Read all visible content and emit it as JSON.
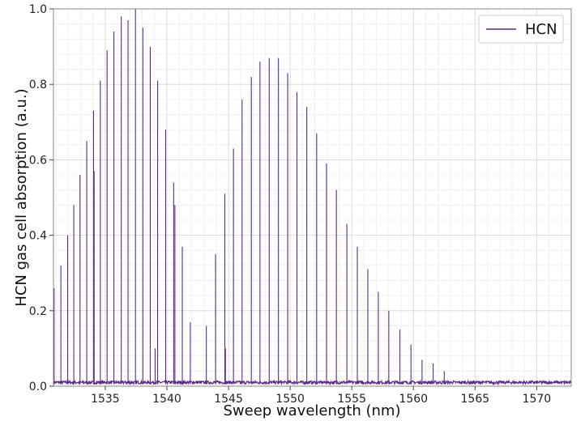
{
  "chart_data": {
    "type": "line",
    "xlabel": "Sweep wavelength (nm)",
    "ylabel": "HCN gas cell absorption (a.u.)",
    "xlim": [
      1530.8,
      1572.8
    ],
    "ylim": [
      0.0,
      1.0
    ],
    "x_ticks": [
      "1535",
      "1540",
      "1545",
      "1550",
      "1555",
      "1560",
      "1565",
      "1570"
    ],
    "y_ticks": [
      "0.0",
      "0.2",
      "0.4",
      "0.6",
      "0.8",
      "1.0"
    ],
    "x_tick_values": [
      1535,
      1540,
      1545,
      1550,
      1555,
      1560,
      1565,
      1570
    ],
    "y_tick_values": [
      0.0,
      0.2,
      0.4,
      0.6,
      0.8,
      1.0
    ],
    "grid": "major and minor",
    "legend_position": "top-right",
    "series": [
      {
        "name": "HCN",
        "color": "#5b2c82",
        "baseline": 0.01,
        "peaks": [
          {
            "x": 1530.85,
            "y": 0.26
          },
          {
            "x": 1531.4,
            "y": 0.32
          },
          {
            "x": 1531.95,
            "y": 0.4
          },
          {
            "x": 1532.45,
            "y": 0.48
          },
          {
            "x": 1532.95,
            "y": 0.56
          },
          {
            "x": 1533.5,
            "y": 0.65
          },
          {
            "x": 1534.05,
            "y": 0.73
          },
          {
            "x": 1534.1,
            "y": 0.57
          },
          {
            "x": 1534.6,
            "y": 0.81
          },
          {
            "x": 1535.15,
            "y": 0.89
          },
          {
            "x": 1535.7,
            "y": 0.94
          },
          {
            "x": 1536.3,
            "y": 0.98
          },
          {
            "x": 1536.85,
            "y": 0.97
          },
          {
            "x": 1537.45,
            "y": 1.0
          },
          {
            "x": 1538.05,
            "y": 0.95
          },
          {
            "x": 1538.65,
            "y": 0.9
          },
          {
            "x": 1539.05,
            "y": 0.1
          },
          {
            "x": 1539.25,
            "y": 0.81
          },
          {
            "x": 1539.9,
            "y": 0.68
          },
          {
            "x": 1540.55,
            "y": 0.54
          },
          {
            "x": 1540.65,
            "y": 0.48
          },
          {
            "x": 1541.25,
            "y": 0.37
          },
          {
            "x": 1541.9,
            "y": 0.17
          },
          {
            "x": 1543.2,
            "y": 0.16
          },
          {
            "x": 1543.95,
            "y": 0.35
          },
          {
            "x": 1544.7,
            "y": 0.51
          },
          {
            "x": 1544.75,
            "y": 0.1
          },
          {
            "x": 1545.4,
            "y": 0.63
          },
          {
            "x": 1546.1,
            "y": 0.76
          },
          {
            "x": 1546.85,
            "y": 0.82
          },
          {
            "x": 1547.55,
            "y": 0.86
          },
          {
            "x": 1548.3,
            "y": 0.87
          },
          {
            "x": 1549.05,
            "y": 0.87
          },
          {
            "x": 1549.8,
            "y": 0.83
          },
          {
            "x": 1550.55,
            "y": 0.78
          },
          {
            "x": 1551.35,
            "y": 0.74
          },
          {
            "x": 1552.15,
            "y": 0.67
          },
          {
            "x": 1552.95,
            "y": 0.59
          },
          {
            "x": 1553.75,
            "y": 0.52
          },
          {
            "x": 1554.6,
            "y": 0.43
          },
          {
            "x": 1555.45,
            "y": 0.37
          },
          {
            "x": 1556.3,
            "y": 0.31
          },
          {
            "x": 1557.15,
            "y": 0.25
          },
          {
            "x": 1558.0,
            "y": 0.2
          },
          {
            "x": 1558.9,
            "y": 0.15
          },
          {
            "x": 1559.8,
            "y": 0.11
          },
          {
            "x": 1560.7,
            "y": 0.07
          },
          {
            "x": 1561.6,
            "y": 0.06
          },
          {
            "x": 1562.5,
            "y": 0.04
          }
        ]
      }
    ]
  }
}
